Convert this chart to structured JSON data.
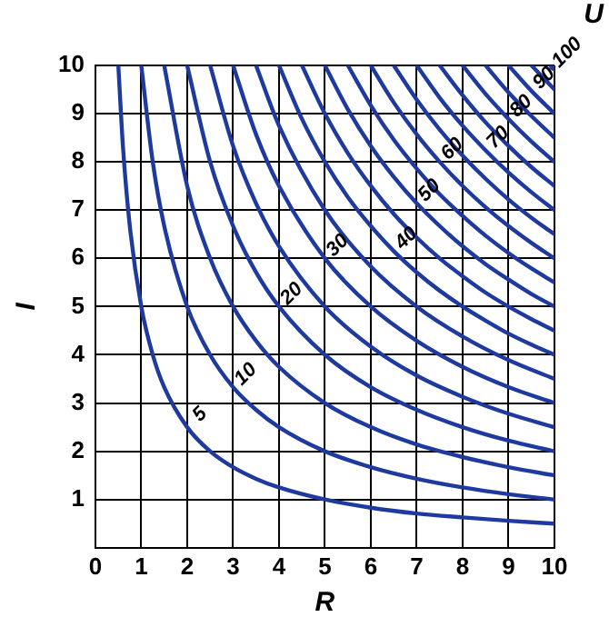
{
  "chart_data": {
    "type": "line",
    "xlabel": "R",
    "ylabel": "I",
    "annotations": [
      "U"
    ],
    "xlim": [
      0,
      10
    ],
    "ylim": [
      0,
      10
    ],
    "xticks": [
      0,
      1,
      2,
      3,
      4,
      5,
      6,
      7,
      8,
      9,
      10
    ],
    "yticks": [
      1,
      2,
      3,
      4,
      5,
      6,
      7,
      8,
      9,
      10
    ],
    "grid": true,
    "legend": false,
    "marker": "none",
    "line_style": "solid",
    "series": [
      {
        "name": "5",
        "color": "#1f3a9e",
        "x": [
          0.5,
          0.6,
          0.75,
          1,
          1.25,
          1.5,
          2,
          2.5,
          3,
          3.5,
          4,
          5,
          6,
          7,
          8,
          9,
          10
        ],
        "values": [
          10,
          8.33,
          6.67,
          5,
          4,
          3.33,
          2.5,
          2,
          1.67,
          1.43,
          1.25,
          1,
          0.83,
          0.71,
          0.63,
          0.56,
          0.5
        ]
      },
      {
        "name": "10",
        "color": "#1f3a9e",
        "x": [
          1,
          1.25,
          1.5,
          2,
          2.5,
          3,
          3.5,
          4,
          5,
          6,
          7,
          8,
          9,
          10
        ],
        "values": [
          10,
          8,
          6.67,
          5,
          4,
          3.33,
          2.86,
          2.5,
          2,
          1.67,
          1.43,
          1.25,
          1.11,
          1
        ]
      },
      {
        "color": "#1f3a9e",
        "x": [
          1.5,
          2,
          2.5,
          3,
          3.5,
          4,
          5,
          6,
          7,
          8,
          9,
          10
        ],
        "values": [
          10,
          7.5,
          6,
          5,
          4.29,
          3.75,
          3,
          2.5,
          2.14,
          1.88,
          1.67,
          1.5
        ]
      },
      {
        "name": "20",
        "color": "#1f3a9e",
        "x": [
          2,
          2.5,
          3,
          3.5,
          4,
          5,
          6,
          7,
          8,
          9,
          10
        ],
        "values": [
          10,
          8,
          6.67,
          5.71,
          5,
          4,
          3.33,
          2.86,
          2.5,
          2.22,
          2
        ]
      },
      {
        "color": "#1f3a9e",
        "x": [
          2.5,
          3,
          3.5,
          4,
          5,
          6,
          7,
          8,
          9,
          10
        ],
        "values": [
          10,
          8.33,
          7.14,
          6.25,
          5,
          4.17,
          3.57,
          3.13,
          2.78,
          2.5
        ]
      },
      {
        "name": "30",
        "color": "#1f3a9e",
        "x": [
          3,
          3.5,
          4,
          5,
          6,
          7,
          8,
          9,
          10
        ],
        "values": [
          10,
          8.57,
          7.5,
          6,
          5,
          4.29,
          3.75,
          3.33,
          3
        ]
      },
      {
        "color": "#1f3a9e",
        "x": [
          3.5,
          4,
          5,
          6,
          7,
          8,
          9,
          10
        ],
        "values": [
          10,
          8.75,
          7,
          5.83,
          5,
          4.38,
          3.89,
          3.5
        ]
      },
      {
        "name": "40",
        "color": "#1f3a9e",
        "x": [
          4,
          4.5,
          5,
          5.5,
          6,
          6.5,
          7,
          7.5,
          8,
          8.5,
          9,
          9.5,
          10
        ],
        "values": [
          10,
          8.89,
          8,
          7.27,
          6.67,
          6.15,
          5.71,
          5.33,
          5,
          4.71,
          4.44,
          4.21,
          4
        ]
      },
      {
        "color": "#1f3a9e",
        "x": [
          4.5,
          5,
          5.5,
          6,
          6.5,
          7,
          7.5,
          8,
          8.5,
          9,
          9.5,
          10
        ],
        "values": [
          10,
          9,
          8.18,
          7.5,
          6.92,
          6.43,
          6,
          5.63,
          5.29,
          5,
          4.74,
          4.5
        ]
      },
      {
        "name": "50",
        "color": "#1f3a9e",
        "x": [
          5,
          5.5,
          6,
          6.5,
          7,
          7.5,
          8,
          8.5,
          9,
          9.5,
          10
        ],
        "values": [
          10,
          9.09,
          8.33,
          7.69,
          7.14,
          6.67,
          6.25,
          5.88,
          5.56,
          5.26,
          5
        ]
      },
      {
        "color": "#1f3a9e",
        "x": [
          5.5,
          6,
          6.5,
          7,
          7.5,
          8,
          8.5,
          9,
          9.5,
          10
        ],
        "values": [
          10,
          9.17,
          8.46,
          7.86,
          7.33,
          6.88,
          6.47,
          6.11,
          5.79,
          5.5
        ]
      },
      {
        "name": "60",
        "color": "#1f3a9e",
        "x": [
          6,
          6.5,
          7,
          7.5,
          8,
          8.5,
          9,
          9.5,
          10
        ],
        "values": [
          10,
          9.23,
          8.57,
          8,
          7.5,
          7.06,
          6.67,
          6.32,
          6
        ]
      },
      {
        "color": "#1f3a9e",
        "x": [
          6.5,
          7,
          7.5,
          8,
          8.5,
          9,
          9.5,
          10
        ],
        "values": [
          10,
          9.29,
          8.67,
          8.13,
          7.65,
          7.22,
          6.84,
          6.5
        ]
      },
      {
        "name": "70",
        "color": "#1f3a9e",
        "x": [
          7,
          7.5,
          8,
          8.5,
          9,
          9.5,
          10
        ],
        "values": [
          10,
          9.33,
          8.75,
          8.24,
          7.78,
          7.37,
          7
        ]
      },
      {
        "color": "#1f3a9e",
        "x": [
          7.5,
          8,
          8.5,
          9,
          9.5,
          10
        ],
        "values": [
          10,
          9.38,
          8.82,
          8.33,
          7.89,
          7.5
        ]
      },
      {
        "name": "80",
        "color": "#1f3a9e",
        "x": [
          8,
          8.5,
          9,
          9.5,
          10
        ],
        "values": [
          10,
          9.41,
          8.89,
          8.42,
          8
        ]
      },
      {
        "color": "#1f3a9e",
        "x": [
          8.5,
          9,
          9.5,
          10
        ],
        "values": [
          10,
          9.44,
          8.95,
          8.5
        ]
      },
      {
        "name": "90",
        "color": "#1f3a9e",
        "x": [
          9,
          9.5,
          10
        ],
        "values": [
          10,
          9.47,
          9
        ]
      },
      {
        "color": "#1f3a9e",
        "x": [
          9.5,
          10
        ],
        "values": [
          10,
          9.5
        ]
      },
      {
        "name": "100",
        "color": "#1f3a9e",
        "marker": "circle",
        "x": [
          10
        ],
        "values": [
          10
        ]
      }
    ]
  }
}
